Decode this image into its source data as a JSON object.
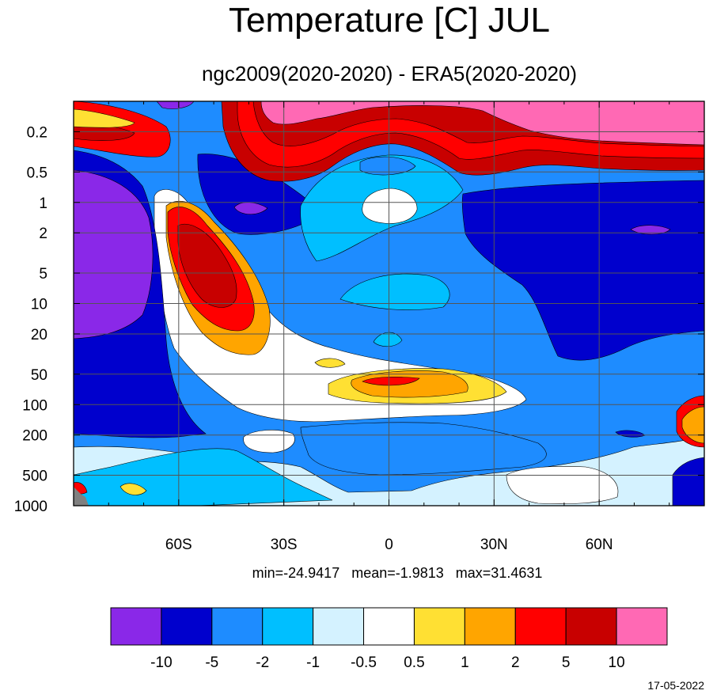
{
  "chart_data": {
    "type": "heatmap",
    "title": "Temperature [C] JUL",
    "subtitle": "ngc2009(2020-2020) - ERA5(2020-2020)",
    "xlabel": "",
    "ylabel": "",
    "x_ticks": [
      {
        "value": -60,
        "label": "60S"
      },
      {
        "value": -30,
        "label": "30S"
      },
      {
        "value": 0,
        "label": "0"
      },
      {
        "value": 30,
        "label": "30N"
      },
      {
        "value": 60,
        "label": "60N"
      }
    ],
    "x_range": [
      -90,
      90
    ],
    "y_scale": "log",
    "y_reversed": true,
    "y_range": [
      0.1,
      1000
    ],
    "y_ticks": [
      {
        "value": 0.2,
        "label": "0.2"
      },
      {
        "value": 0.5,
        "label": "0.5"
      },
      {
        "value": 1,
        "label": "1"
      },
      {
        "value": 2,
        "label": "2"
      },
      {
        "value": 5,
        "label": "5"
      },
      {
        "value": 10,
        "label": "10"
      },
      {
        "value": 20,
        "label": "20"
      },
      {
        "value": 50,
        "label": "50"
      },
      {
        "value": 100,
        "label": "100"
      },
      {
        "value": 200,
        "label": "200"
      },
      {
        "value": 500,
        "label": "500"
      },
      {
        "value": 1000,
        "label": "1000"
      }
    ],
    "grid": true,
    "stats_text": "min=-24.9417   mean=-1.9813   max=31.4631",
    "stats": {
      "min": -24.9417,
      "mean": -1.9813,
      "max": 31.4631
    },
    "colorbar": {
      "colors": [
        "#8a28e8",
        "#0000cd",
        "#1e8cff",
        "#00bfff",
        "#d4f2ff",
        "#ffffff",
        "#ffe033",
        "#ffa500",
        "#ff0000",
        "#c80000",
        "#ff69b4"
      ],
      "levels": [
        "-10",
        "-5",
        "-2",
        "-1",
        "-0.5",
        "0.5",
        "1",
        "2",
        "5",
        "10"
      ]
    },
    "regions": [
      {
        "category": 0,
        "desc": "purple",
        "lat_range": [
          -90,
          -66
        ],
        "p_range": [
          0.6,
          25
        ]
      },
      {
        "category": 1,
        "desc": "dark-blue",
        "lat_range": [
          -90,
          -60
        ],
        "p_range": [
          0.5,
          200
        ]
      },
      {
        "category": 1,
        "desc": "dark-blue",
        "lat_range": [
          35,
          90
        ],
        "p_range": [
          1,
          60
        ]
      },
      {
        "category": 1,
        "desc": "dark-blue",
        "lat_range": [
          -45,
          -30
        ],
        "p_range": [
          0.5,
          2
        ]
      },
      {
        "category": 0,
        "desc": "purple",
        "lat_range": [
          -40,
          -35
        ],
        "p_range": [
          1.2,
          1.6
        ]
      },
      {
        "category": 0,
        "desc": "purple",
        "lat_range": [
          68,
          78
        ],
        "p_range": [
          1.8,
          2.3
        ]
      },
      {
        "category": 3,
        "desc": "light-blue",
        "lat_range": [
          -20,
          20
        ],
        "p_range": [
          0.6,
          3
        ]
      },
      {
        "category": 3,
        "desc": "light-blue",
        "lat_range": [
          -15,
          10
        ],
        "p_range": [
          5,
          12
        ]
      },
      {
        "category": 5,
        "desc": "white",
        "lat_range": [
          -7,
          8
        ],
        "p_range": [
          1,
          1.7
        ]
      },
      {
        "category": 5,
        "desc": "white",
        "lat_range": [
          -35,
          35
        ],
        "p_range": [
          30,
          110
        ]
      },
      {
        "category": 8,
        "desc": "red-orange",
        "lat_range": [
          -60,
          -40
        ],
        "p_range": [
          1.2,
          25
        ]
      },
      {
        "category": 9,
        "desc": "dark-red",
        "lat_range": [
          -58,
          -45
        ],
        "p_range": [
          2.5,
          10
        ]
      },
      {
        "category": 7,
        "desc": "orange",
        "lat_range": [
          -10,
          20
        ],
        "p_range": [
          55,
          90
        ]
      },
      {
        "category": 8,
        "desc": "red",
        "lat_range": [
          -5,
          8
        ],
        "p_range": [
          60,
          65
        ]
      },
      {
        "category": 8,
        "desc": "red-warm",
        "lat_range": [
          -90,
          -70
        ],
        "p_range": [
          0.15,
          0.4
        ]
      },
      {
        "category": 9,
        "desc": "dark-red",
        "lat_range": [
          -45,
          90
        ],
        "p_range": [
          0.1,
          0.6
        ]
      },
      {
        "category": 10,
        "desc": "pink",
        "lat_range": [
          -35,
          90
        ],
        "p_range": [
          0.1,
          0.3
        ]
      },
      {
        "category": 8,
        "desc": "red",
        "lat_range": [
          82,
          90
        ],
        "p_range": [
          150,
          250
        ]
      },
      {
        "category": 4,
        "desc": "very-light-blue",
        "lat_range": [
          -90,
          -20
        ],
        "p_range": [
          250,
          1000
        ]
      }
    ]
  },
  "footer": {
    "date": "17-05-2022"
  }
}
